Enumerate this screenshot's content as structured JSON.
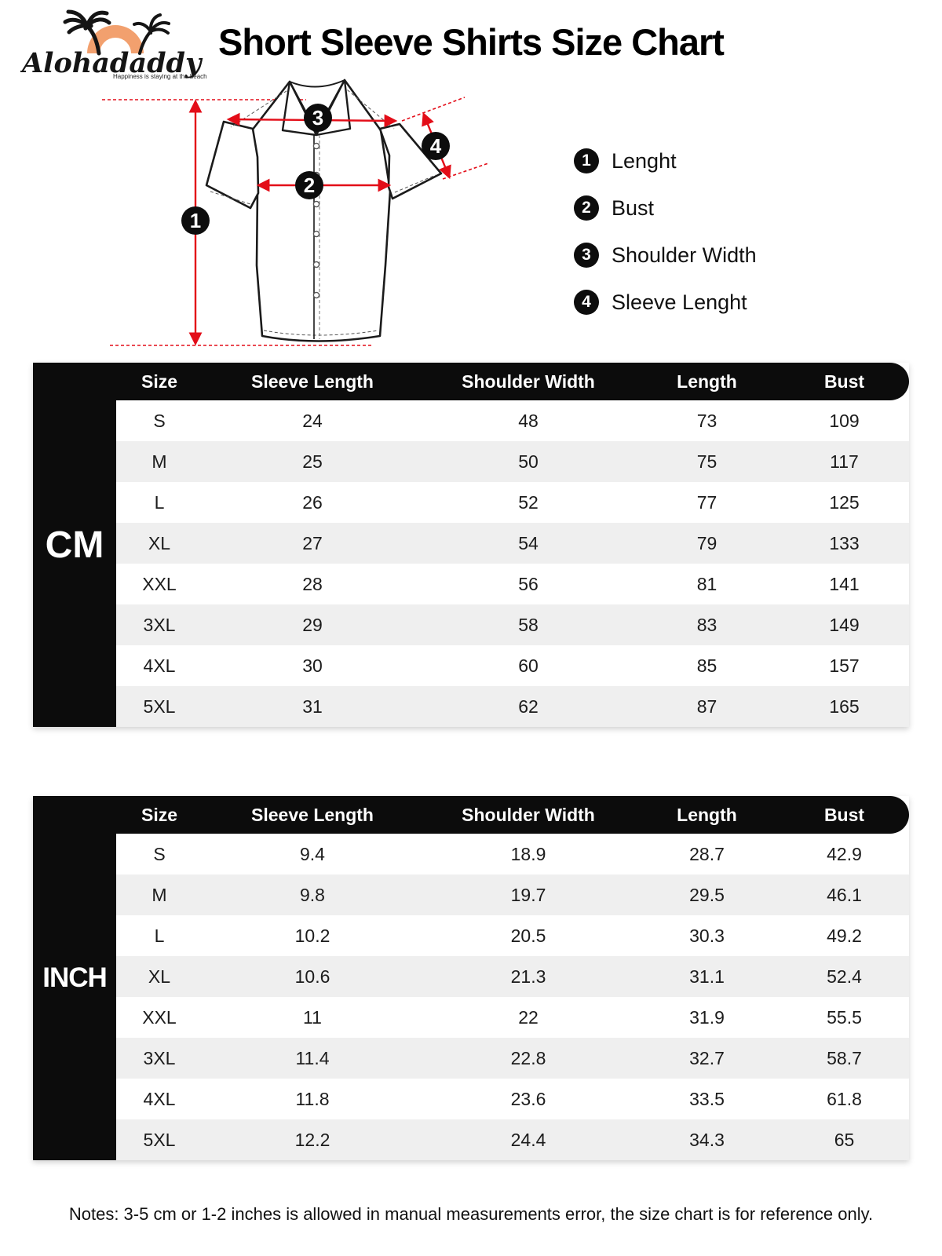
{
  "brand": {
    "name": "Alohadaddy",
    "tagline": "Happiness is staying at the beach"
  },
  "page_title": "Short Sleeve Shirts Size Chart",
  "diagram": {
    "labels": [
      {
        "num": "1",
        "label": "Lenght"
      },
      {
        "num": "2",
        "label": "Bust"
      },
      {
        "num": "3",
        "label": "Shoulder Width"
      },
      {
        "num": "4",
        "label": "Sleeve Lenght"
      }
    ]
  },
  "tables": [
    {
      "unit_label": "CM",
      "columns": [
        "Size",
        "Sleeve Length",
        "Shoulder Width",
        "Length",
        "Bust"
      ],
      "rows": [
        [
          "S",
          "24",
          "48",
          "73",
          "109"
        ],
        [
          "M",
          "25",
          "50",
          "75",
          "117"
        ],
        [
          "L",
          "26",
          "52",
          "77",
          "125"
        ],
        [
          "XL",
          "27",
          "54",
          "79",
          "133"
        ],
        [
          "XXL",
          "28",
          "56",
          "81",
          "141"
        ],
        [
          "3XL",
          "29",
          "58",
          "83",
          "149"
        ],
        [
          "4XL",
          "30",
          "60",
          "85",
          "157"
        ],
        [
          "5XL",
          "31",
          "62",
          "87",
          "165"
        ]
      ]
    },
    {
      "unit_label": "INCH",
      "columns": [
        "Size",
        "Sleeve Length",
        "Shoulder Width",
        "Length",
        "Bust"
      ],
      "rows": [
        [
          "S",
          "9.4",
          "18.9",
          "28.7",
          "42.9"
        ],
        [
          "M",
          "9.8",
          "19.7",
          "29.5",
          "46.1"
        ],
        [
          "L",
          "10.2",
          "20.5",
          "30.3",
          "49.2"
        ],
        [
          "XL",
          "10.6",
          "21.3",
          "31.1",
          "52.4"
        ],
        [
          "XXL",
          "11",
          "22",
          "31.9",
          "55.5"
        ],
        [
          "3XL",
          "11.4",
          "22.8",
          "32.7",
          "58.7"
        ],
        [
          "4XL",
          "11.8",
          "23.6",
          "33.5",
          "61.8"
        ],
        [
          "5XL",
          "12.2",
          "24.4",
          "34.3",
          "65"
        ]
      ]
    }
  ],
  "notes": "Notes: 3-5 cm or 1-2 inches is allowed in manual measurements error, the size chart is for reference only.",
  "colors": {
    "accent_red": "#e30d18",
    "logo_orange": "#f2a06e",
    "header_black": "#0c0c0c",
    "row_alt_gray": "#efefef"
  }
}
